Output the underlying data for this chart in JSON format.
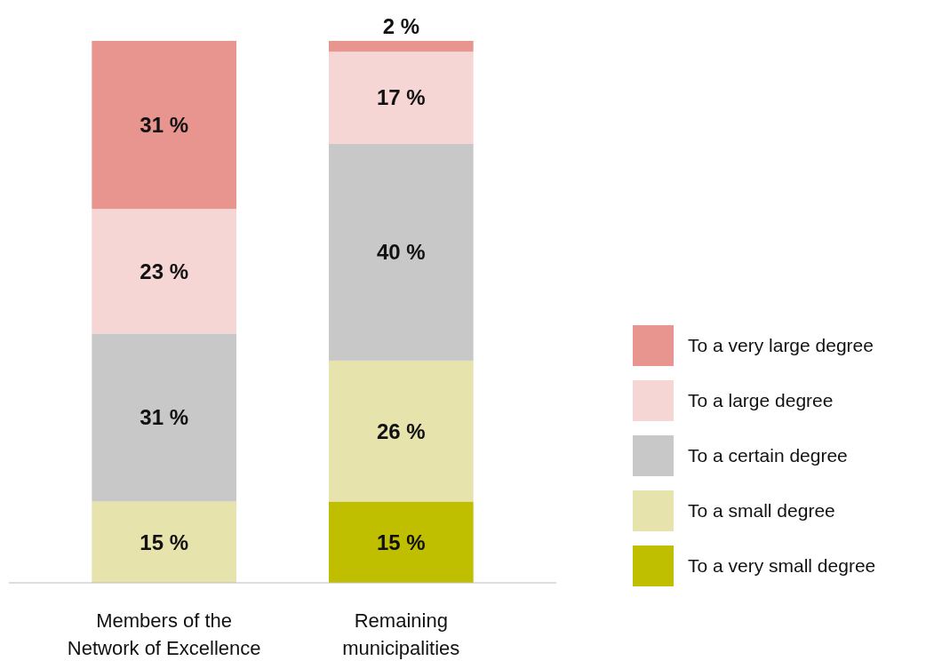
{
  "chart_data": {
    "type": "bar",
    "stacked": true,
    "categories": [
      "Members of the Network of Excellence",
      "Remaining municipalities"
    ],
    "series": [
      {
        "name": "To a very small degree",
        "color": "#bfbf00",
        "values": [
          0,
          15
        ],
        "value_labels": [
          null,
          "15 %"
        ]
      },
      {
        "name": "To a small degree",
        "color": "#e6e3ad",
        "values": [
          15,
          26
        ],
        "value_labels": [
          "15 %",
          "26 %"
        ]
      },
      {
        "name": "To a certain degree",
        "color": "#c8c8c8",
        "values": [
          31,
          40
        ],
        "value_labels": [
          "31 %",
          "40 %"
        ]
      },
      {
        "name": "To a large degree",
        "color": "#f6d6d4",
        "values": [
          23,
          17
        ],
        "value_labels": [
          "23 %",
          "17 %"
        ]
      },
      {
        "name": "To a very large degree",
        "color": "#e8948f",
        "values": [
          31,
          2
        ],
        "value_labels": [
          "31 %",
          "2 %"
        ]
      }
    ],
    "legend": "right"
  }
}
